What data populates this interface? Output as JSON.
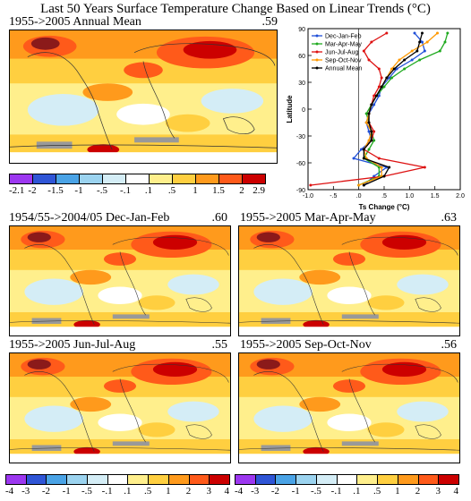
{
  "title": "Last 50 Years Surface Temperature Change Based on Linear Trends (°C)",
  "panels": [
    {
      "label": "1955->2005 Annual Mean",
      "value": ".59"
    },
    {
      "label": "1954/55->2004/05 Dec-Jan-Feb",
      "value": ".60"
    },
    {
      "label": "1955->2005 Mar-Apr-May",
      "value": ".63"
    },
    {
      "label": "1955->2005 Jun-Jul-Aug",
      "value": ".55"
    },
    {
      "label": "1955->2005 Sep-Oct-Nov",
      "value": ".56"
    }
  ],
  "colorbars": {
    "top": {
      "ticks": [
        "-2.1",
        "-2",
        "-1.5",
        "-1",
        "-.5",
        "-.1",
        ".1",
        ".5",
        "1",
        "1.5",
        "2",
        "2.9"
      ],
      "colors": [
        "#9c37f0",
        "#2f55d6",
        "#4aa3e6",
        "#9bd3ef",
        "#d4edf6",
        "#ffffff",
        "#ffef8c",
        "#ffcf40",
        "#ff9a1c",
        "#ff5a1a",
        "#cc0000"
      ]
    },
    "bottom": {
      "ticks": [
        "-4",
        "-3",
        "-2",
        "-1",
        "-.5",
        "-.1",
        ".1",
        ".5",
        "1",
        "2",
        "3",
        "4"
      ],
      "colors": [
        "#9c37f0",
        "#2f55d6",
        "#4aa3e6",
        "#9bd3ef",
        "#d4edf6",
        "#ffffff",
        "#ffef8c",
        "#ffcf40",
        "#ff9a1c",
        "#ff5a1a",
        "#cc0000"
      ]
    }
  },
  "chart_data": {
    "type": "line",
    "xlabel": "Ts Change (°C)",
    "ylabel": "Latitude",
    "xlim": [
      -1.0,
      2.0
    ],
    "ylim": [
      -90,
      90
    ],
    "xticks": [
      "-1.0",
      "-.5",
      ".0",
      ".5",
      "1.0",
      "1.5",
      "2.0"
    ],
    "yticks": [
      "-90",
      "-60",
      "-30",
      "0",
      "30",
      "60",
      "90"
    ],
    "legend_position": "top-left",
    "lat": [
      -85,
      -75,
      -65,
      -55,
      -45,
      -35,
      -25,
      -15,
      -5,
      5,
      15,
      25,
      35,
      45,
      55,
      65,
      75,
      85
    ],
    "series": [
      {
        "name": "Dec-Jan-Feb",
        "color": "#1f4fd8",
        "values": [
          0.1,
          0.3,
          0.55,
          -0.1,
          0.05,
          0.25,
          0.2,
          0.15,
          0.2,
          0.3,
          0.4,
          0.45,
          0.6,
          0.75,
          1.05,
          1.3,
          1.25,
          1.1
        ]
      },
      {
        "name": "Mar-Apr-May",
        "color": "#1faa1f",
        "values": [
          0.0,
          0.4,
          0.4,
          0.1,
          0.2,
          0.3,
          0.25,
          0.2,
          0.15,
          0.25,
          0.35,
          0.5,
          0.65,
          0.9,
          1.2,
          1.6,
          1.7,
          1.75
        ]
      },
      {
        "name": "Jun-Jul-Aug",
        "color": "#dd1111",
        "values": [
          -0.95,
          0.5,
          1.3,
          0.4,
          0.1,
          0.25,
          0.3,
          0.2,
          0.2,
          0.25,
          0.3,
          0.4,
          0.45,
          0.4,
          0.2,
          0.1,
          0.25,
          0.55
        ]
      },
      {
        "name": "Sep-Oct-Nov",
        "color": "#ff9900",
        "values": [
          0.0,
          0.45,
          0.45,
          0.15,
          0.1,
          0.2,
          0.25,
          0.15,
          0.2,
          0.25,
          0.35,
          0.45,
          0.55,
          0.65,
          0.8,
          1.05,
          1.35,
          1.55
        ]
      },
      {
        "name": "Annual Mean",
        "color": "#000000",
        "values": [
          0.1,
          0.5,
          0.6,
          0.1,
          0.1,
          0.25,
          0.25,
          0.2,
          0.2,
          0.25,
          0.35,
          0.45,
          0.55,
          0.7,
          0.9,
          1.15,
          1.2,
          1.25
        ]
      }
    ]
  }
}
